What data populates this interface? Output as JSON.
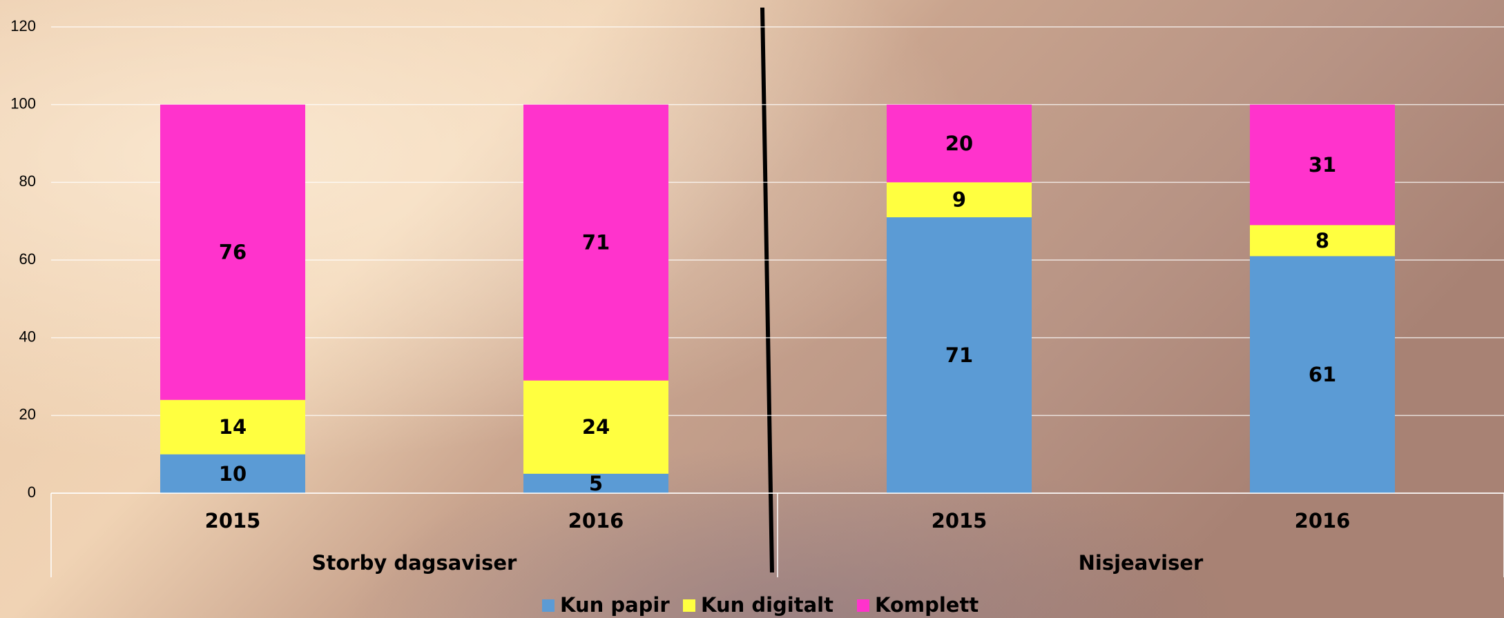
{
  "chart_data": {
    "type": "stacked_bar",
    "categories": [
      "2015",
      "2016",
      "2015",
      "2016"
    ],
    "groups": [
      "Storby dagsaviser",
      "Nisjeaviser"
    ],
    "series": [
      {
        "name": "Kun papir",
        "color": "#5b9bd5",
        "values": [
          10,
          5,
          71,
          61
        ]
      },
      {
        "name": "Kun digitalt",
        "color": "#ffff40",
        "values": [
          14,
          24,
          9,
          8
        ]
      },
      {
        "name": "Komplett",
        "color": "#ff33cc",
        "values": [
          76,
          71,
          20,
          31
        ]
      }
    ],
    "ylim": [
      0,
      120
    ],
    "yticks": [
      0,
      20,
      40,
      60,
      80,
      100,
      120
    ],
    "grid": true,
    "legend": "bottom"
  }
}
